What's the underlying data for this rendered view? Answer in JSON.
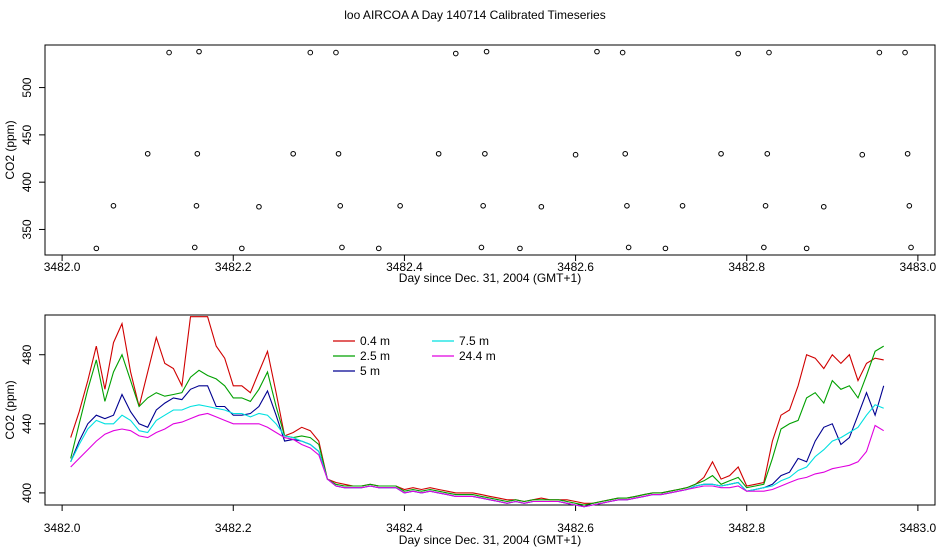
{
  "figure": {
    "title": "loo AIRCOA A  Day 140714  Calibrated Timeseries"
  },
  "chart_data": [
    {
      "type": "scatter",
      "xlabel": "Day since Dec. 31, 2004 (GMT+1)",
      "ylabel": "CO2 (ppm)",
      "xlim": [
        3481.98,
        3483.02
      ],
      "ylim": [
        323,
        545
      ],
      "xticks": [
        3482.0,
        3482.2,
        3482.4,
        3482.6,
        3482.8,
        3483.0
      ],
      "xtick_labels": [
        "3482.0",
        "3482.2",
        "3482.4",
        "3482.6",
        "3482.8",
        "3483.0"
      ],
      "yticks": [
        350,
        400,
        450,
        500
      ],
      "ytick_labels": [
        "350",
        "400",
        "450",
        "500"
      ],
      "point_color": "#000000",
      "points": [
        {
          "x": 3482.04,
          "y": 330
        },
        {
          "x": 3482.06,
          "y": 375
        },
        {
          "x": 3482.1,
          "y": 430
        },
        {
          "x": 3482.125,
          "y": 537
        },
        {
          "x": 3482.155,
          "y": 331
        },
        {
          "x": 3482.157,
          "y": 375
        },
        {
          "x": 3482.158,
          "y": 430
        },
        {
          "x": 3482.16,
          "y": 538
        },
        {
          "x": 3482.21,
          "y": 330
        },
        {
          "x": 3482.23,
          "y": 374
        },
        {
          "x": 3482.27,
          "y": 430
        },
        {
          "x": 3482.29,
          "y": 537
        },
        {
          "x": 3482.32,
          "y": 537
        },
        {
          "x": 3482.323,
          "y": 430
        },
        {
          "x": 3482.325,
          "y": 375
        },
        {
          "x": 3482.327,
          "y": 331
        },
        {
          "x": 3482.37,
          "y": 330
        },
        {
          "x": 3482.395,
          "y": 375
        },
        {
          "x": 3482.44,
          "y": 430
        },
        {
          "x": 3482.46,
          "y": 536
        },
        {
          "x": 3482.49,
          "y": 331
        },
        {
          "x": 3482.492,
          "y": 375
        },
        {
          "x": 3482.494,
          "y": 430
        },
        {
          "x": 3482.496,
          "y": 538
        },
        {
          "x": 3482.535,
          "y": 330
        },
        {
          "x": 3482.56,
          "y": 374
        },
        {
          "x": 3482.6,
          "y": 429
        },
        {
          "x": 3482.625,
          "y": 538
        },
        {
          "x": 3482.655,
          "y": 537
        },
        {
          "x": 3482.658,
          "y": 430
        },
        {
          "x": 3482.66,
          "y": 375
        },
        {
          "x": 3482.662,
          "y": 331
        },
        {
          "x": 3482.705,
          "y": 330
        },
        {
          "x": 3482.725,
          "y": 375
        },
        {
          "x": 3482.77,
          "y": 430
        },
        {
          "x": 3482.79,
          "y": 536
        },
        {
          "x": 3482.82,
          "y": 331
        },
        {
          "x": 3482.822,
          "y": 375
        },
        {
          "x": 3482.824,
          "y": 430
        },
        {
          "x": 3482.826,
          "y": 537
        },
        {
          "x": 3482.87,
          "y": 330
        },
        {
          "x": 3482.89,
          "y": 374
        },
        {
          "x": 3482.935,
          "y": 429
        },
        {
          "x": 3482.955,
          "y": 537
        },
        {
          "x": 3482.985,
          "y": 537
        },
        {
          "x": 3482.988,
          "y": 430
        },
        {
          "x": 3482.99,
          "y": 375
        },
        {
          "x": 3482.992,
          "y": 331
        }
      ]
    },
    {
      "type": "line",
      "xlabel": "Day since Dec. 31, 2004 (GMT+1)",
      "ylabel": "CO2 (ppm)",
      "xlim": [
        3481.98,
        3483.02
      ],
      "ylim": [
        393,
        503
      ],
      "xticks": [
        3482.0,
        3482.2,
        3482.4,
        3482.6,
        3482.8,
        3483.0
      ],
      "xtick_labels": [
        "3482.0",
        "3482.2",
        "3482.4",
        "3482.6",
        "3482.8",
        "3483.0"
      ],
      "yticks": [
        400,
        440,
        480
      ],
      "ytick_labels": [
        "400",
        "440",
        "480"
      ],
      "legend": {
        "placement": "top-center",
        "columns": 2
      },
      "x_start": 3482.01,
      "x_step": 0.01,
      "series": [
        {
          "name": "0.4 m",
          "color": "#d00000",
          "values": [
            432,
            447,
            465,
            485,
            460,
            487,
            498,
            470,
            450,
            470,
            490,
            475,
            472,
            462,
            502,
            502,
            502,
            485,
            478,
            462,
            462,
            458,
            470,
            482,
            458,
            433,
            435,
            438,
            436,
            430,
            408,
            406,
            405,
            404,
            404,
            405,
            404,
            404,
            404,
            402,
            403,
            402,
            403,
            402,
            401,
            400,
            400,
            400,
            399,
            398,
            397,
            396,
            396,
            395,
            396,
            397,
            396,
            396,
            396,
            395,
            394,
            394,
            395,
            396,
            397,
            397,
            398,
            399,
            400,
            400,
            401,
            402,
            403,
            405,
            409,
            418,
            408,
            410,
            415,
            404,
            405,
            406,
            430,
            445,
            448,
            462,
            480,
            478,
            472,
            480,
            475,
            480,
            465,
            475,
            478,
            477
          ]
        },
        {
          "name": "2.5 m",
          "color": "#00a000",
          "values": [
            420,
            440,
            460,
            477,
            453,
            470,
            480,
            465,
            450,
            455,
            458,
            456,
            457,
            458,
            467,
            471,
            468,
            466,
            462,
            455,
            455,
            453,
            460,
            470,
            450,
            433,
            432,
            433,
            432,
            428,
            408,
            405,
            404,
            404,
            404,
            405,
            404,
            404,
            404,
            401,
            402,
            401,
            402,
            401,
            400,
            399,
            399,
            399,
            398,
            397,
            396,
            395,
            396,
            395,
            396,
            396,
            396,
            396,
            395,
            394,
            393,
            394,
            395,
            396,
            397,
            397,
            398,
            399,
            400,
            400,
            401,
            402,
            403,
            405,
            407,
            410,
            405,
            407,
            409,
            403,
            404,
            405,
            420,
            437,
            440,
            442,
            455,
            458,
            452,
            465,
            460,
            462,
            455,
            468,
            482,
            485
          ]
        },
        {
          "name": "5 m",
          "color": "#000090",
          "values": [
            418,
            430,
            440,
            445,
            443,
            445,
            457,
            447,
            440,
            438,
            448,
            452,
            455,
            454,
            460,
            462,
            462,
            450,
            450,
            445,
            445,
            446,
            450,
            459,
            445,
            430,
            431,
            430,
            428,
            424,
            408,
            404,
            403,
            403,
            403,
            404,
            403,
            403,
            403,
            400,
            401,
            400,
            401,
            400,
            399,
            398,
            398,
            398,
            397,
            396,
            395,
            394,
            395,
            394,
            395,
            395,
            395,
            395,
            394,
            393,
            392,
            393,
            394,
            395,
            396,
            396,
            397,
            398,
            399,
            399,
            400,
            401,
            402,
            404,
            405,
            405,
            404,
            405,
            406,
            401,
            402,
            403,
            405,
            410,
            412,
            420,
            418,
            430,
            438,
            440,
            428,
            432,
            445,
            458,
            445,
            462
          ]
        },
        {
          "name": "7.5 m",
          "color": "#00e0e0",
          "values": [
            418,
            428,
            437,
            442,
            440,
            440,
            445,
            442,
            436,
            435,
            442,
            445,
            448,
            448,
            450,
            451,
            450,
            449,
            448,
            446,
            446,
            444,
            446,
            445,
            440,
            433,
            432,
            430,
            428,
            424,
            408,
            404,
            403,
            403,
            403,
            404,
            403,
            403,
            403,
            400,
            401,
            400,
            401,
            400,
            399,
            398,
            398,
            398,
            397,
            396,
            395,
            394,
            395,
            394,
            395,
            395,
            395,
            395,
            394,
            393,
            392,
            393,
            394,
            395,
            396,
            396,
            397,
            398,
            399,
            399,
            400,
            401,
            402,
            404,
            405,
            405,
            404,
            405,
            406,
            401,
            402,
            403,
            404,
            407,
            409,
            413,
            415,
            421,
            425,
            430,
            432,
            435,
            438,
            445,
            451,
            449
          ]
        },
        {
          "name": "24.4 m",
          "color": "#e000e0",
          "values": [
            415,
            420,
            425,
            430,
            434,
            436,
            437,
            436,
            433,
            432,
            435,
            437,
            440,
            441,
            443,
            445,
            446,
            444,
            442,
            440,
            440,
            440,
            440,
            438,
            435,
            432,
            431,
            428,
            426,
            422,
            408,
            404,
            403,
            403,
            403,
            404,
            403,
            403,
            403,
            400,
            401,
            400,
            401,
            400,
            399,
            398,
            398,
            398,
            397,
            396,
            395,
            394,
            395,
            394,
            395,
            395,
            395,
            395,
            394,
            393,
            392,
            393,
            394,
            395,
            396,
            396,
            397,
            398,
            399,
            399,
            400,
            401,
            402,
            403,
            404,
            404,
            403,
            403,
            404,
            401,
            401,
            401,
            402,
            404,
            406,
            408,
            409,
            411,
            412,
            414,
            415,
            416,
            418,
            424,
            439,
            436
          ]
        }
      ]
    }
  ]
}
